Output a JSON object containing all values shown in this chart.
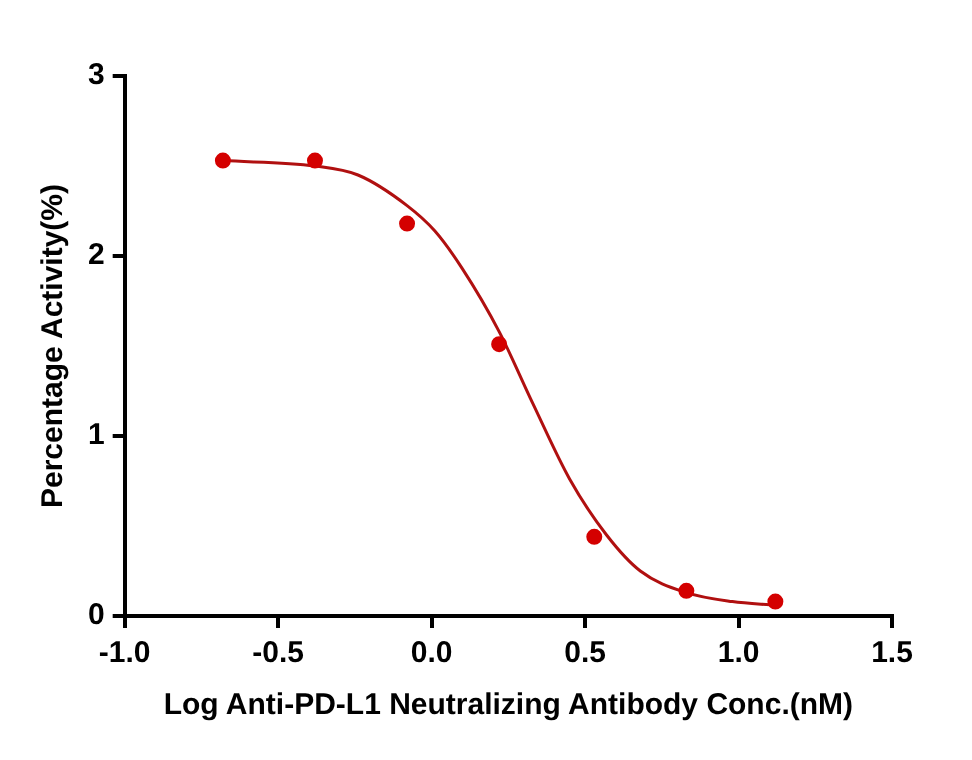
{
  "chart_data": {
    "type": "scatter",
    "xlabel": "Log Anti-PD-L1 Neutralizing Antibody Conc.(nM)",
    "ylabel": "Percentage Activity(%)",
    "xlim": [
      -1.0,
      1.5
    ],
    "xticks": [
      {
        "value": -1,
        "label": "-1.0"
      },
      {
        "value": -0.5,
        "label": "-0.5"
      },
      {
        "value": 0,
        "label": "0.0"
      },
      {
        "value": 0.5,
        "label": "0.5"
      },
      {
        "value": 1,
        "label": "1.0"
      },
      {
        "value": 1.5,
        "label": "1.5"
      }
    ],
    "ylim": [
      0,
      3
    ],
    "yticks": [
      0,
      1,
      2,
      3
    ],
    "grid": false,
    "legend": false,
    "series": [
      {
        "type": "scatter",
        "color": "#d40000",
        "marker": "circle",
        "x": [
          -0.68,
          -0.38,
          -0.08,
          0.22,
          0.53,
          0.83,
          1.12
        ],
        "values": [
          2.53,
          2.53,
          2.18,
          1.51,
          0.44,
          0.14,
          0.08
        ]
      },
      {
        "type": "line",
        "color": "#b01010",
        "marker": "none",
        "line_style": "solid",
        "x": [
          -0.68,
          -0.38,
          -0.24,
          -0.08,
          0.01,
          0.1,
          0.22,
          0.33,
          0.45,
          0.57,
          0.68,
          0.83,
          0.98,
          1.12
        ],
        "values": [
          2.53,
          2.5,
          2.45,
          2.28,
          2.14,
          1.93,
          1.58,
          1.18,
          0.76,
          0.45,
          0.25,
          0.13,
          0.08,
          0.06
        ]
      }
    ]
  }
}
